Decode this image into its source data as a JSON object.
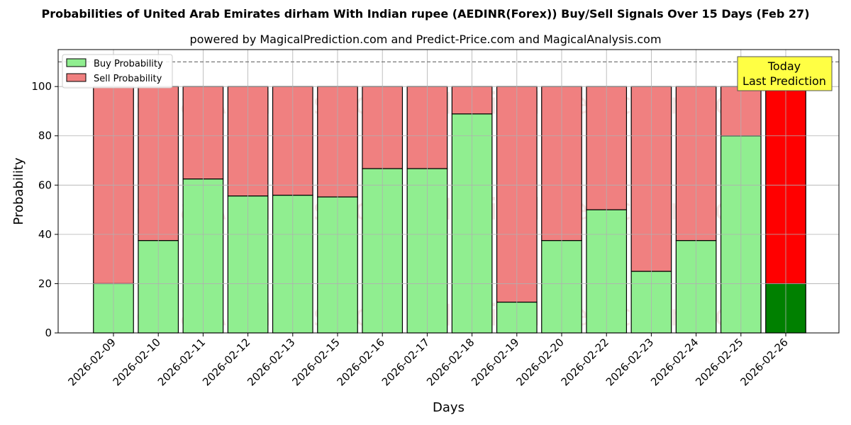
{
  "chart_data": {
    "type": "bar",
    "stacked": true,
    "title": "Probabilities of United Arab Emirates dirham With Indian rupee (AEDINR(Forex)) Buy/Sell Signals Over 15 Days (Feb 27)",
    "subtitle": "powered by MagicalPrediction.com and Predict-Price.com and MagicalAnalysis.com",
    "xlabel": "Days",
    "ylabel": "Probability",
    "ylim": [
      0,
      115
    ],
    "yticks": [
      0,
      20,
      40,
      60,
      80,
      100
    ],
    "reference_line": 110,
    "grid": true,
    "legend_position": "top-left",
    "categories": [
      "2026-02-09",
      "2026-02-10",
      "2026-02-11",
      "2026-02-12",
      "2026-02-13",
      "2026-02-15",
      "2026-02-16",
      "2026-02-17",
      "2026-02-18",
      "2026-02-19",
      "2026-02-20",
      "2026-02-22",
      "2026-02-23",
      "2026-02-24",
      "2026-02-25",
      "2026-02-26"
    ],
    "series": [
      {
        "name": "Buy Probability",
        "color": "#90ee90",
        "highlight_color": "#008000",
        "values": [
          20,
          37.5,
          62.5,
          55.6,
          55.9,
          55.2,
          66.7,
          66.7,
          88.9,
          12.5,
          37.5,
          50,
          25,
          37.5,
          80,
          20
        ]
      },
      {
        "name": "Sell Probability",
        "color": "#f08080",
        "highlight_color": "#ff0000",
        "values": [
          80,
          62.5,
          37.5,
          44.4,
          44.1,
          44.8,
          33.3,
          33.3,
          11.1,
          87.5,
          62.5,
          50,
          75,
          62.5,
          20,
          80
        ]
      }
    ],
    "highlight_index": 15,
    "annotation": {
      "line1": "Today",
      "line2": "Last Prediction",
      "color": "#ffff44"
    },
    "watermarks": [
      "MagicalAnalysis.com",
      "MagicalPrediction.com"
    ]
  }
}
